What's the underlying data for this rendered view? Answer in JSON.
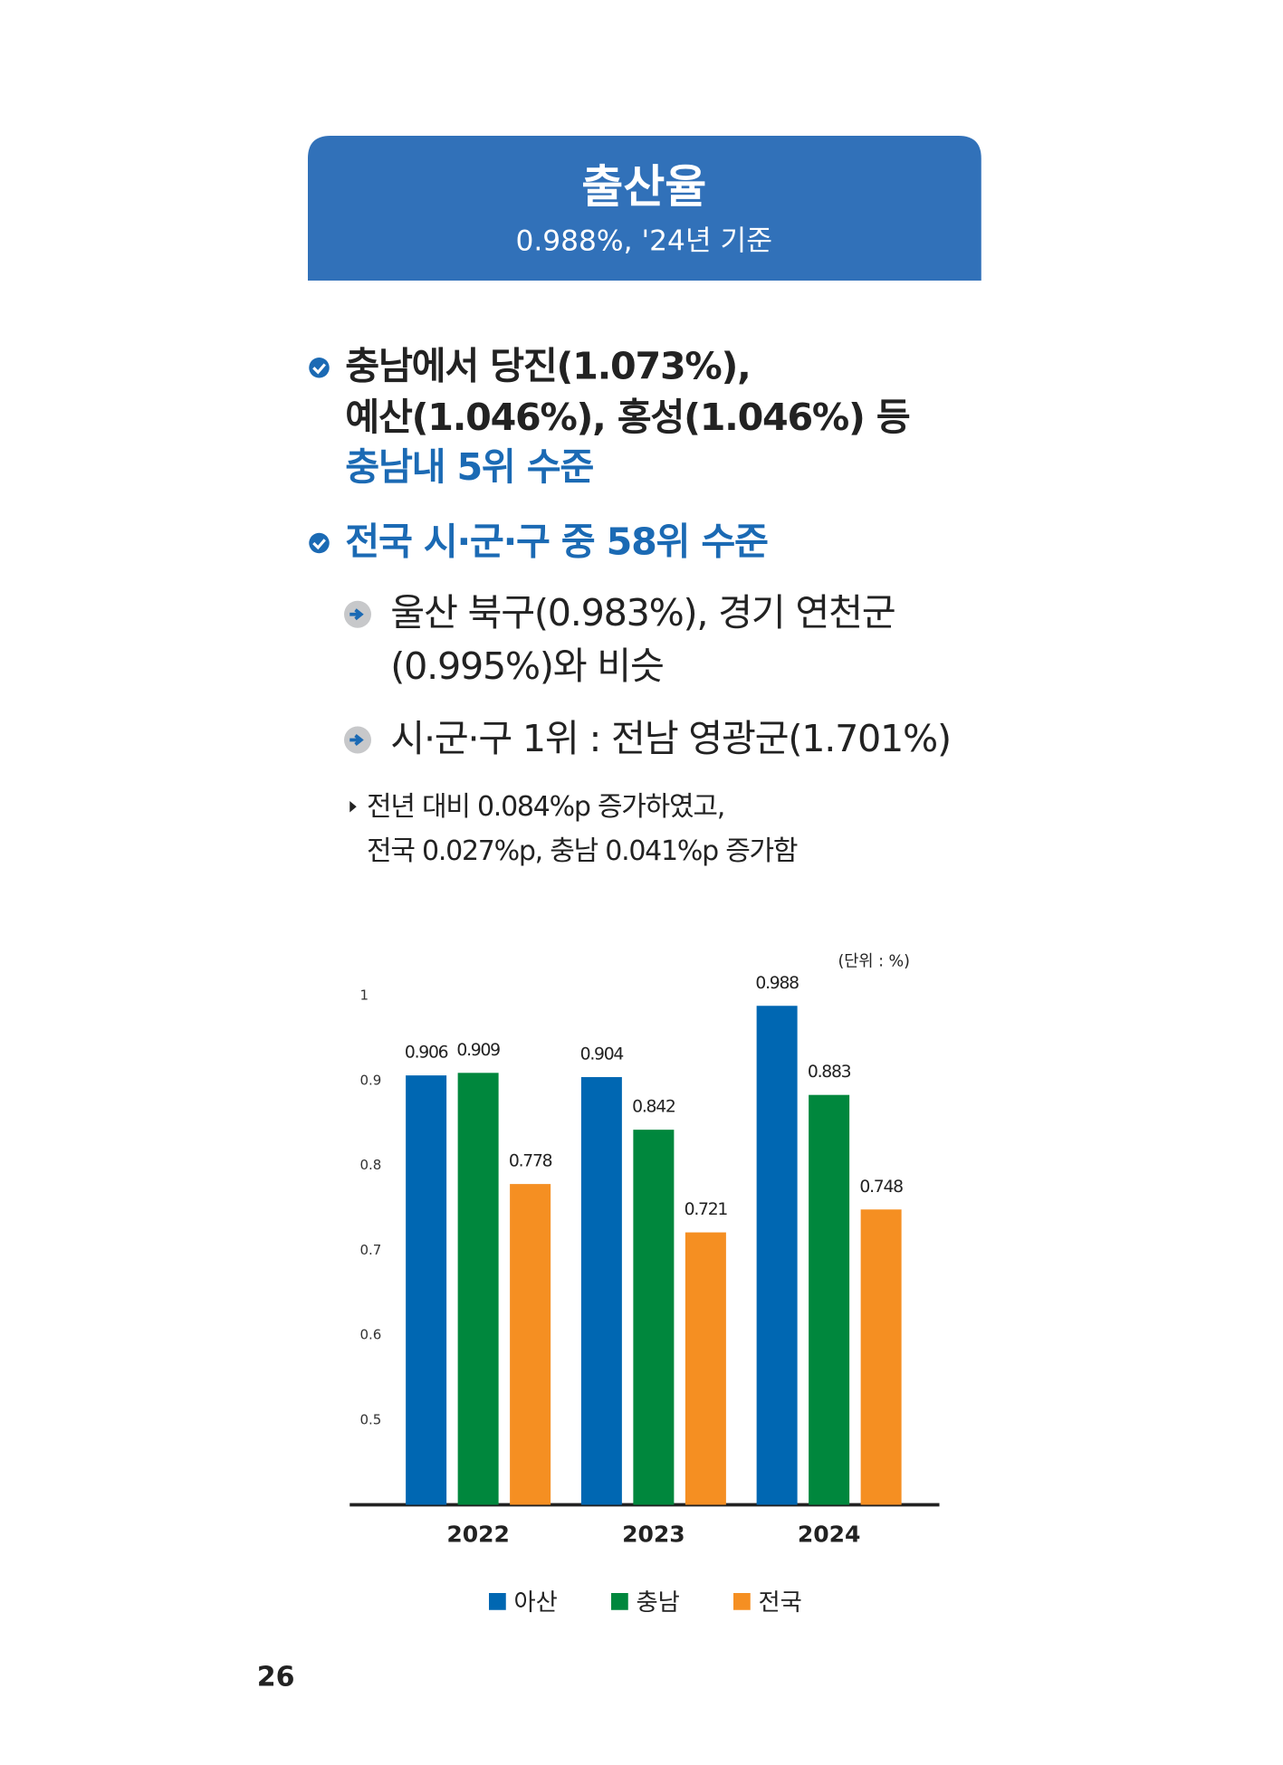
{
  "header": {
    "title": "출산율",
    "subtitle": "0.988%, '24년 기준"
  },
  "bullets": [
    {
      "lines": [
        "충남에서 당진(1.073%),",
        "예산(1.046%), 홍성(1.046%) 등",
        "충남내 5위 수준"
      ]
    },
    {
      "lines": [
        "전국 시·군·구 중 58위 수준"
      ]
    }
  ],
  "sub_bullets": [
    {
      "lines": [
        "울산 북구(0.983%), 경기 연천군",
        "(0.995%)와 비슷"
      ]
    },
    {
      "lines": [
        "시·군·구 1위 : 전남 영광군(1.701%)"
      ]
    }
  ],
  "note": {
    "lines": [
      "전년 대비 0.084%p 증가하였고,",
      "전국 0.027%p, 충남 0.041%p 증가함"
    ]
  },
  "chart_data": {
    "type": "bar",
    "unit_label": "(단위 : %)",
    "categories": [
      "2022",
      "2023",
      "2024"
    ],
    "series": [
      {
        "name": "아산",
        "color": "#0067b2",
        "values": [
          0.906,
          0.904,
          0.988
        ]
      },
      {
        "name": "충남",
        "color": "#00873d",
        "values": [
          0.909,
          0.842,
          0.883
        ]
      },
      {
        "name": "전국",
        "color": "#f58f22",
        "values": [
          0.778,
          0.721,
          0.748
        ]
      }
    ],
    "ylim": [
      0.4,
      1
    ],
    "yticks": [
      0.5,
      0.6,
      0.7,
      0.8,
      0.9,
      1
    ],
    "grid": false,
    "legend": "bottom"
  },
  "page_number": "26"
}
